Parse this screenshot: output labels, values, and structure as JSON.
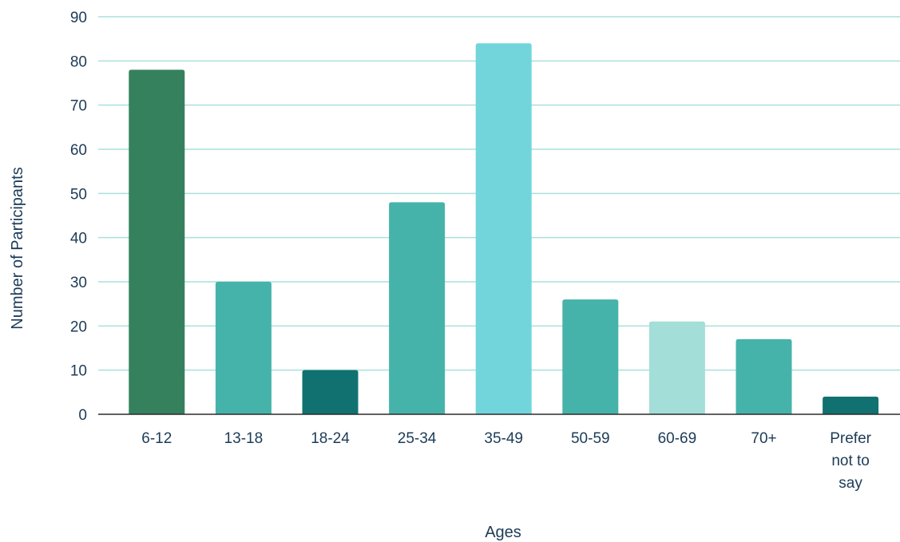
{
  "chart_data": {
    "type": "bar",
    "title": "",
    "xlabel": "Ages",
    "ylabel": "Number of Participants",
    "ylim": [
      0,
      90
    ],
    "yticks": [
      0,
      10,
      20,
      30,
      40,
      50,
      60,
      70,
      80,
      90
    ],
    "grid": true,
    "categories": [
      [
        "6-12"
      ],
      [
        "13-18"
      ],
      [
        "18-24"
      ],
      [
        "25-34"
      ],
      [
        "35-49"
      ],
      [
        "50-59"
      ],
      [
        "60-69"
      ],
      [
        "70+"
      ],
      [
        "Prefer",
        "not to",
        "say"
      ]
    ],
    "values": [
      78,
      30,
      10,
      48,
      84,
      26,
      21,
      17,
      4
    ],
    "colors": [
      "#35815e",
      "#46b3aa",
      "#117171",
      "#46b3aa",
      "#72d5dc",
      "#46b3aa",
      "#a3ded8",
      "#46b3aa",
      "#117171"
    ],
    "gridline_color": "#a8e0dc",
    "axis_color": "#2b2b2b",
    "text_color": "#1c3b57"
  }
}
